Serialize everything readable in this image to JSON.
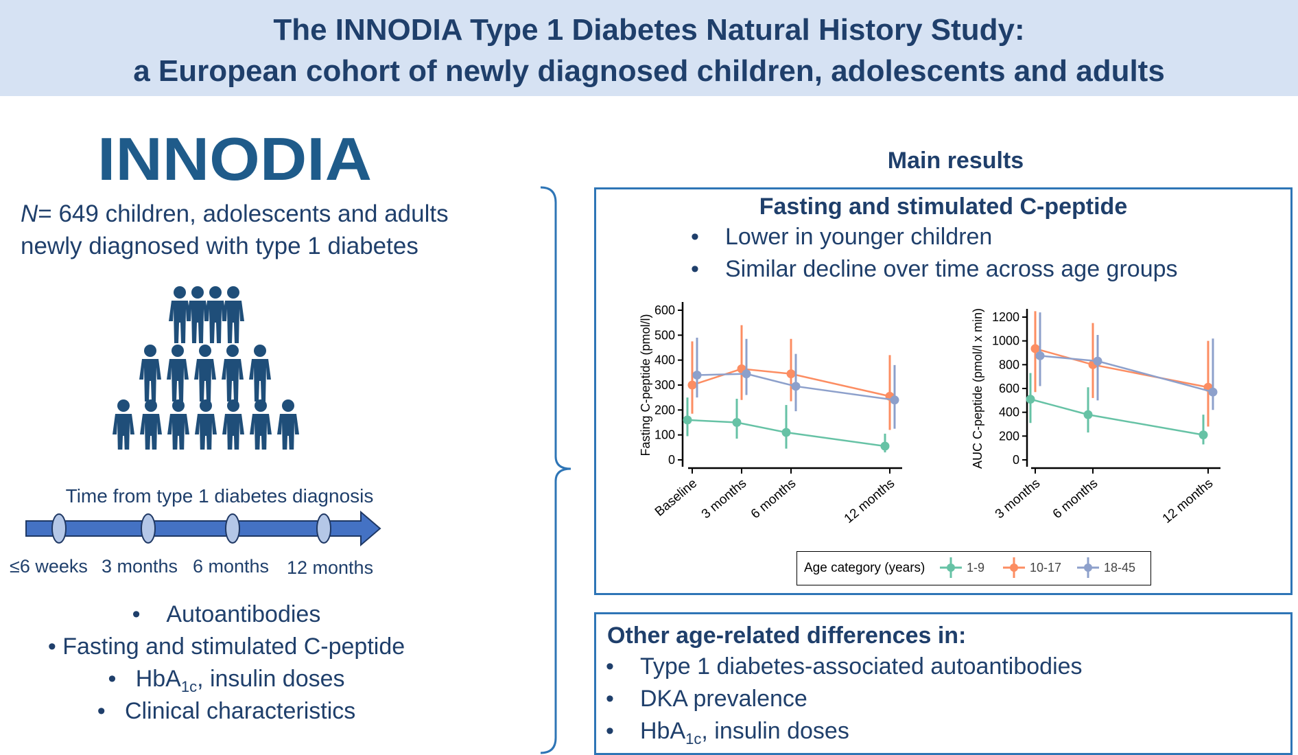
{
  "title": {
    "line1": "The INNODIA Type 1 Diabetes Natural History Study:",
    "line2": "a European cohort of newly diagnosed children, adolescents and adults"
  },
  "logo": {
    "text": "INNODIA"
  },
  "cohort": {
    "n_label": "N",
    "n_text": "= 649 children, adolescents and adults",
    "line2": "newly diagnosed with type 1 diabetes"
  },
  "timeline": {
    "title": "Time from type 1 diabetes diagnosis",
    "labels": [
      "≤6 weeks",
      "3 months",
      "6 months",
      "12 months"
    ]
  },
  "measurements": {
    "bullet": "•",
    "items": [
      "Autoantibodies",
      "Fasting and stimulated C-peptide",
      "HbA",
      "Clinical characteristics"
    ],
    "hba_sub": "1c",
    "hba_rest": ", insulin doses"
  },
  "main_results": {
    "heading": "Main results",
    "box_title": "Fasting and stimulated C-peptide",
    "bullets": [
      "Lower in younger children",
      "Similar decline over time across age groups"
    ]
  },
  "colors": {
    "g1": "#66c2a5",
    "g2": "#fc8d62",
    "g3": "#8da0cb",
    "navy": "#1f3f6b",
    "box": "#2e75b6"
  },
  "chart_data": [
    {
      "type": "line",
      "ylabel": "Fasting C-peptide (pmol/l)",
      "categories": [
        "Baseline",
        "3 months",
        "6 months",
        "12 months"
      ],
      "x_months": [
        0,
        3,
        6,
        12
      ],
      "ylim": [
        0,
        600
      ],
      "yticks": [
        0,
        100,
        200,
        300,
        400,
        500,
        600
      ],
      "series": [
        {
          "name": "1-9",
          "values": [
            160,
            150,
            110,
            55
          ],
          "low": [
            95,
            85,
            45,
            30
          ],
          "high": [
            250,
            245,
            220,
            105
          ]
        },
        {
          "name": "10-17",
          "values": [
            300,
            365,
            345,
            255
          ],
          "low": [
            185,
            240,
            235,
            120
          ],
          "high": [
            475,
            540,
            485,
            420
          ]
        },
        {
          "name": "18-45",
          "values": [
            340,
            345,
            295,
            240
          ],
          "low": [
            250,
            260,
            195,
            125
          ],
          "high": [
            490,
            485,
            425,
            380
          ]
        }
      ]
    },
    {
      "type": "line",
      "ylabel": "AUC C-peptide (pmol/l x min)",
      "categories": [
        "3 months",
        "6 months",
        "12 months"
      ],
      "x_months": [
        3,
        6,
        12
      ],
      "ylim": [
        0,
        1200
      ],
      "yticks": [
        0,
        200,
        400,
        600,
        800,
        1000,
        1200
      ],
      "series": [
        {
          "name": "1-9",
          "values": [
            510,
            380,
            210
          ],
          "low": [
            310,
            230,
            130
          ],
          "high": [
            730,
            610,
            380
          ]
        },
        {
          "name": "10-17",
          "values": [
            935,
            800,
            610
          ],
          "low": [
            570,
            520,
            280
          ],
          "high": [
            1250,
            1150,
            1000
          ]
        },
        {
          "name": "18-45",
          "values": [
            875,
            830,
            570
          ],
          "low": [
            620,
            500,
            420
          ],
          "high": [
            1240,
            1050,
            1020
          ]
        }
      ]
    }
  ],
  "legend": {
    "title": "Age category (years)",
    "items": [
      "1-9",
      "10-17",
      "18-45"
    ]
  },
  "other": {
    "heading": "Other age-related differences in:",
    "items": [
      "Type 1 diabetes-associated autoantibodies",
      "DKA prevalence",
      "HbA"
    ],
    "hba_sub": "1c",
    "hba_rest": ", insulin doses"
  }
}
